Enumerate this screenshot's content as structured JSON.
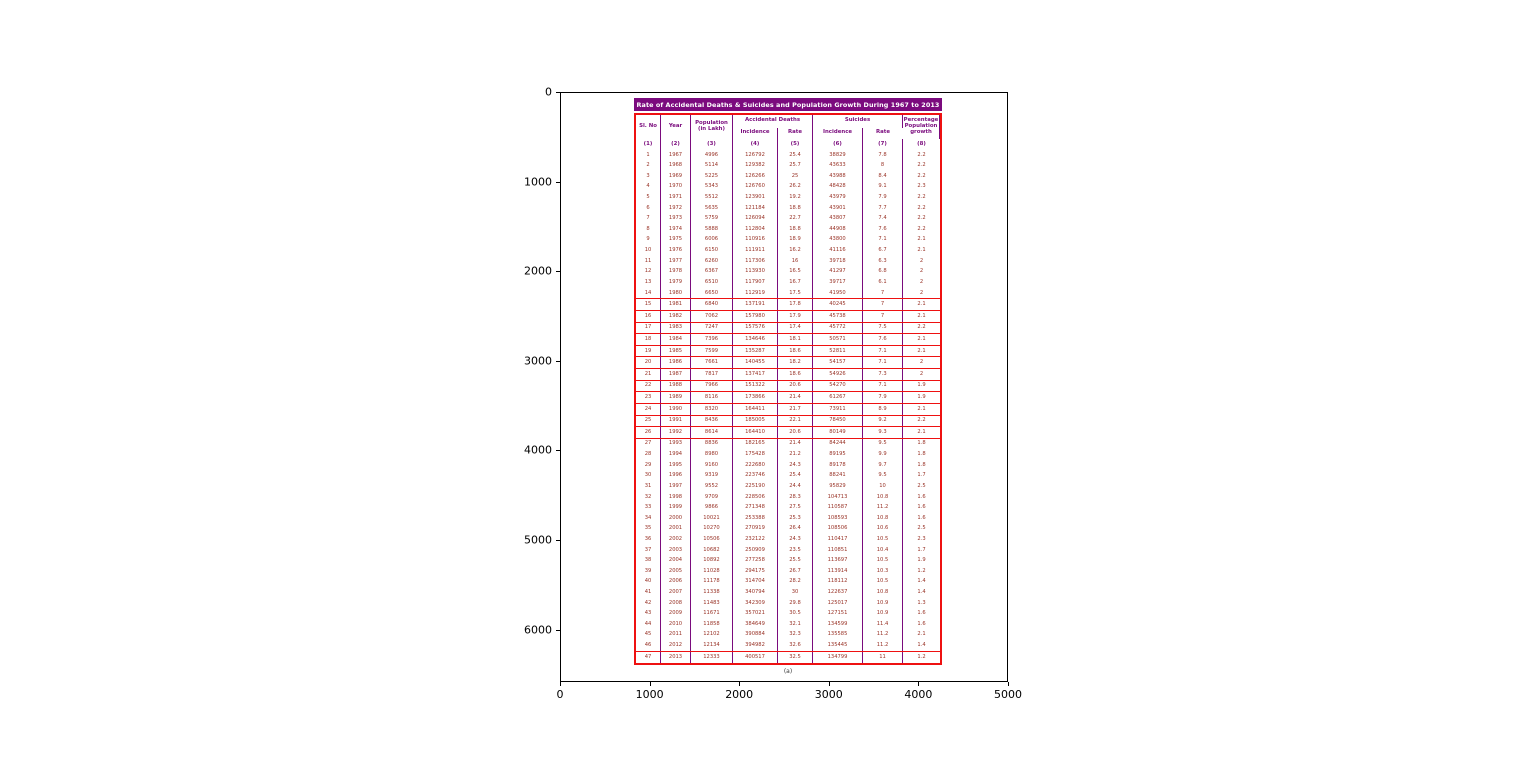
{
  "axes": {
    "x_ticks": [
      "0",
      "1000",
      "2000",
      "3000",
      "4000",
      "5000"
    ],
    "y_ticks": [
      "0",
      "1000",
      "2000",
      "3000",
      "4000",
      "5000",
      "6000"
    ]
  },
  "colors": {
    "title_bg": "#7b0a7e",
    "title_text": "#ffffff",
    "header_text": "#7a0b7d",
    "data_text": "#993327",
    "red_border": "#ee1111",
    "purple_divider": "#7a0b7d"
  },
  "chart_data": {
    "type": "table",
    "title": "Rate of Accidental Deaths & Suicides and Population Growth During 1967 to 2013",
    "caption": "(a)",
    "header": {
      "sl_no": "Sl. No",
      "year": "Year",
      "population": "Population (in Lakh)",
      "accidental_deaths_group": "Accidental Deaths",
      "suicides_group": "Suicides",
      "incidence": "Incidence",
      "rate": "Rate",
      "pct_growth": "Percentage Population growth"
    },
    "column_numbers": [
      "(1)",
      "(2)",
      "(3)",
      "(4)",
      "(5)",
      "(6)",
      "(7)",
      "(8)"
    ],
    "red_separator_after_sl": [
      14,
      15,
      16,
      17,
      18,
      19,
      20,
      21,
      22,
      23,
      24,
      25,
      26,
      46
    ],
    "rows": [
      [
        1,
        1967,
        4996,
        126792,
        25.4,
        38829,
        7.8,
        2.2
      ],
      [
        2,
        1968,
        5114,
        129382,
        25.7,
        43633,
        8.0,
        2.2
      ],
      [
        3,
        1969,
        5225,
        126266,
        25.0,
        43988,
        8.4,
        2.2
      ],
      [
        4,
        1970,
        5343,
        126760,
        26.2,
        48428,
        9.1,
        2.3
      ],
      [
        5,
        1971,
        5512,
        123901,
        19.2,
        43979,
        7.9,
        2.2
      ],
      [
        6,
        1972,
        5635,
        121184,
        18.8,
        43901,
        7.7,
        2.2
      ],
      [
        7,
        1973,
        5759,
        126094,
        22.7,
        43807,
        7.4,
        2.2
      ],
      [
        8,
        1974,
        5888,
        112804,
        18.8,
        44908,
        7.6,
        2.2
      ],
      [
        9,
        1975,
        6006,
        110916,
        18.9,
        43800,
        7.1,
        2.1
      ],
      [
        10,
        1976,
        6150,
        111911,
        16.2,
        41116,
        6.7,
        2.1
      ],
      [
        11,
        1977,
        6260,
        117306,
        16.0,
        39718,
        6.3,
        2.0
      ],
      [
        12,
        1978,
        6367,
        113930,
        16.5,
        41297,
        6.8,
        2.0
      ],
      [
        13,
        1979,
        6510,
        117907,
        16.7,
        39717,
        6.1,
        2.0
      ],
      [
        14,
        1980,
        6650,
        112919,
        17.5,
        41950,
        7.0,
        2.0
      ],
      [
        15,
        1981,
        6840,
        137191,
        17.8,
        40245,
        7.0,
        2.1
      ],
      [
        16,
        1982,
        7062,
        157980,
        17.9,
        45738,
        7.0,
        2.1
      ],
      [
        17,
        1983,
        7247,
        157576,
        17.4,
        45772,
        7.5,
        2.2
      ],
      [
        18,
        1984,
        7396,
        134646,
        18.1,
        50571,
        7.6,
        2.1
      ],
      [
        19,
        1985,
        7599,
        135287,
        18.6,
        52811,
        7.1,
        2.1
      ],
      [
        20,
        1986,
        7661,
        140455,
        18.2,
        54157,
        7.1,
        2.0
      ],
      [
        21,
        1987,
        7817,
        137417,
        18.6,
        54926,
        7.3,
        2.0
      ],
      [
        22,
        1988,
        7966,
        151322,
        20.6,
        54270,
        7.1,
        1.9
      ],
      [
        23,
        1989,
        8116,
        173866,
        21.4,
        61267,
        7.9,
        1.9
      ],
      [
        24,
        1990,
        8320,
        164411,
        21.7,
        73911,
        8.9,
        2.1
      ],
      [
        25,
        1991,
        8436,
        185005,
        22.1,
        78450,
        9.2,
        2.2
      ],
      [
        26,
        1992,
        8614,
        164410,
        20.6,
        80149,
        9.3,
        2.1
      ],
      [
        27,
        1993,
        8836,
        182165,
        21.4,
        84244,
        9.5,
        1.8
      ],
      [
        28,
        1994,
        8980,
        175428,
        21.2,
        89195,
        9.9,
        1.8
      ],
      [
        29,
        1995,
        9160,
        222680,
        24.3,
        89178,
        9.7,
        1.8
      ],
      [
        30,
        1996,
        9319,
        223746,
        25.4,
        88241,
        9.5,
        1.7
      ],
      [
        31,
        1997,
        9552,
        225190,
        24.4,
        95829,
        10.0,
        2.5
      ],
      [
        32,
        1998,
        9709,
        228506,
        28.3,
        104713,
        10.8,
        1.6
      ],
      [
        33,
        1999,
        9866,
        271348,
        27.5,
        110587,
        11.2,
        1.6
      ],
      [
        34,
        2000,
        10021,
        253388,
        25.3,
        108593,
        10.8,
        1.6
      ],
      [
        35,
        2001,
        10270,
        270919,
        26.4,
        108506,
        10.6,
        2.5
      ],
      [
        36,
        2002,
        10506,
        232122,
        24.3,
        110417,
        10.5,
        2.3
      ],
      [
        37,
        2003,
        10682,
        250909,
        23.5,
        110851,
        10.4,
        1.7
      ],
      [
        38,
        2004,
        10892,
        277258,
        25.5,
        113697,
        10.5,
        1.9
      ],
      [
        39,
        2005,
        11028,
        294175,
        26.7,
        113914,
        10.3,
        1.2
      ],
      [
        40,
        2006,
        11178,
        314704,
        28.2,
        118112,
        10.5,
        1.4
      ],
      [
        41,
        2007,
        11338,
        340794,
        30.0,
        122637,
        10.8,
        1.4
      ],
      [
        42,
        2008,
        11483,
        342309,
        29.8,
        125017,
        10.9,
        1.3
      ],
      [
        43,
        2009,
        11671,
        357021,
        30.5,
        127151,
        10.9,
        1.6
      ],
      [
        44,
        2010,
        11858,
        384649,
        32.1,
        134599,
        11.4,
        1.6
      ],
      [
        45,
        2011,
        12102,
        390884,
        32.3,
        135585,
        11.2,
        2.1
      ],
      [
        46,
        2012,
        12134,
        394982,
        32.6,
        135445,
        11.2,
        1.4
      ],
      [
        47,
        2013,
        12333,
        400517,
        32.5,
        134799,
        11.0,
        1.2
      ]
    ]
  }
}
